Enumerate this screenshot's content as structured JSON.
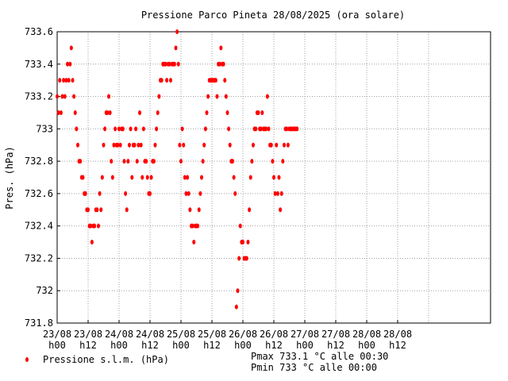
{
  "chart_data": {
    "type": "scatter",
    "title": "Pressione Parco Pineta 28/08/2025 (ora solare)",
    "ylabel": "Pres. (hPa)",
    "xlabel": "",
    "ylim": [
      731.8,
      733.6
    ],
    "xlim": [
      0,
      168
    ],
    "grid": true,
    "legend": "bottom-left",
    "series_color": "#ff0000",
    "y_ticks": [
      "731.8",
      "732",
      "732.2",
      "732.4",
      "732.6",
      "732.8",
      "733",
      "733.2",
      "733.4",
      "733.6"
    ],
    "x_ticks": [
      {
        "x": 0,
        "date": "23/08",
        "hour": "h00"
      },
      {
        "x": 12,
        "date": "23/08",
        "hour": "h12"
      },
      {
        "x": 24,
        "date": "24/08",
        "hour": "h00"
      },
      {
        "x": 36,
        "date": "24/08",
        "hour": "h12"
      },
      {
        "x": 48,
        "date": "25/08",
        "hour": "h00"
      },
      {
        "x": 60,
        "date": "25/08",
        "hour": "h12"
      },
      {
        "x": 72,
        "date": "26/08",
        "hour": "h00"
      },
      {
        "x": 84,
        "date": "26/08",
        "hour": "h12"
      },
      {
        "x": 96,
        "date": "27/08",
        "hour": "h00"
      },
      {
        "x": 108,
        "date": "27/08",
        "hour": "h12"
      },
      {
        "x": 120,
        "date": "28/08",
        "hour": "h00"
      },
      {
        "x": 132,
        "date": "28/08",
        "hour": "h12"
      }
    ],
    "series": [
      {
        "name": "Pressione s.l.m. (hPa)",
        "points": [
          [
            0.0,
            733.2
          ],
          [
            0.5,
            733.1
          ],
          [
            1.0,
            733.3
          ],
          [
            1.5,
            733.1
          ],
          [
            2.0,
            733.2
          ],
          [
            2.5,
            733.3
          ],
          [
            3.0,
            733.2
          ],
          [
            3.5,
            733.3
          ],
          [
            4.0,
            733.4
          ],
          [
            4.5,
            733.3
          ],
          [
            5.0,
            733.4
          ],
          [
            5.5,
            733.5
          ],
          [
            6.0,
            733.3
          ],
          [
            6.5,
            733.2
          ],
          [
            7.0,
            733.1
          ],
          [
            7.5,
            733.0
          ],
          [
            8.0,
            732.9
          ],
          [
            8.5,
            732.8
          ],
          [
            9.0,
            732.8
          ],
          [
            9.5,
            732.7
          ],
          [
            10.0,
            732.7
          ],
          [
            10.5,
            732.6
          ],
          [
            11.0,
            732.6
          ],
          [
            11.5,
            732.5
          ],
          [
            12.0,
            732.5
          ],
          [
            12.5,
            732.4
          ],
          [
            13.0,
            732.4
          ],
          [
            13.5,
            732.3
          ],
          [
            14.0,
            732.4
          ],
          [
            14.5,
            732.4
          ],
          [
            15.0,
            732.5
          ],
          [
            15.5,
            732.5
          ],
          [
            16.0,
            732.4
          ],
          [
            16.5,
            732.6
          ],
          [
            17.0,
            732.5
          ],
          [
            17.5,
            732.7
          ],
          [
            18.0,
            732.9
          ],
          [
            18.5,
            733.0
          ],
          [
            19.0,
            733.1
          ],
          [
            19.5,
            733.1
          ],
          [
            20.0,
            733.2
          ],
          [
            20.5,
            733.1
          ],
          [
            21.0,
            732.8
          ],
          [
            21.5,
            732.7
          ],
          [
            22.0,
            732.9
          ],
          [
            22.5,
            733.0
          ],
          [
            23.0,
            732.9
          ],
          [
            23.5,
            732.9
          ],
          [
            24.0,
            733.0
          ],
          [
            24.5,
            732.9
          ],
          [
            25.0,
            733.0
          ],
          [
            25.5,
            733.0
          ],
          [
            26.0,
            732.8
          ],
          [
            26.5,
            732.6
          ],
          [
            27.0,
            732.5
          ],
          [
            27.5,
            732.8
          ],
          [
            28.0,
            732.9
          ],
          [
            28.5,
            733.0
          ],
          [
            29.0,
            732.7
          ],
          [
            29.5,
            732.9
          ],
          [
            30.0,
            732.9
          ],
          [
            30.5,
            733.0
          ],
          [
            31.0,
            732.8
          ],
          [
            31.5,
            732.9
          ],
          [
            32.0,
            733.1
          ],
          [
            32.5,
            732.9
          ],
          [
            33.0,
            732.7
          ],
          [
            33.5,
            733.0
          ],
          [
            34.0,
            732.8
          ],
          [
            34.5,
            732.8
          ],
          [
            35.0,
            732.7
          ],
          [
            35.5,
            732.6
          ],
          [
            36.0,
            732.6
          ],
          [
            36.5,
            732.7
          ],
          [
            37.0,
            732.8
          ],
          [
            37.5,
            732.8
          ],
          [
            38.0,
            732.9
          ],
          [
            38.5,
            733.0
          ],
          [
            39.0,
            733.1
          ],
          [
            39.5,
            733.2
          ],
          [
            40.0,
            733.3
          ],
          [
            40.5,
            733.3
          ],
          [
            41.0,
            733.4
          ],
          [
            41.5,
            733.4
          ],
          [
            42.0,
            733.4
          ],
          [
            42.5,
            733.3
          ],
          [
            43.0,
            733.4
          ],
          [
            43.5,
            733.4
          ],
          [
            44.0,
            733.3
          ],
          [
            44.5,
            733.4
          ],
          [
            45.0,
            733.4
          ],
          [
            45.5,
            733.4
          ],
          [
            46.0,
            733.5
          ],
          [
            46.5,
            733.6
          ],
          [
            47.0,
            733.4
          ],
          [
            47.5,
            732.9
          ],
          [
            48.0,
            732.8
          ],
          [
            48.5,
            733.0
          ],
          [
            49.0,
            732.9
          ],
          [
            49.5,
            732.7
          ],
          [
            50.0,
            732.6
          ],
          [
            50.5,
            732.7
          ],
          [
            51.0,
            732.6
          ],
          [
            51.5,
            732.5
          ],
          [
            52.0,
            732.4
          ],
          [
            52.5,
            732.4
          ],
          [
            53.0,
            732.3
          ],
          [
            53.5,
            732.4
          ],
          [
            54.0,
            732.4
          ],
          [
            54.5,
            732.4
          ],
          [
            55.0,
            732.5
          ],
          [
            55.5,
            732.6
          ],
          [
            56.0,
            732.7
          ],
          [
            56.5,
            732.8
          ],
          [
            57.0,
            732.9
          ],
          [
            57.5,
            733.0
          ],
          [
            58.0,
            733.1
          ],
          [
            58.5,
            733.2
          ],
          [
            59.0,
            733.3
          ],
          [
            59.5,
            733.3
          ],
          [
            60.0,
            733.3
          ],
          [
            60.5,
            733.3
          ],
          [
            61.0,
            733.3
          ],
          [
            61.5,
            733.3
          ],
          [
            62.0,
            733.2
          ],
          [
            62.5,
            733.4
          ],
          [
            63.0,
            733.4
          ],
          [
            63.5,
            733.5
          ],
          [
            64.0,
            733.4
          ],
          [
            64.5,
            733.4
          ],
          [
            65.0,
            733.3
          ],
          [
            65.5,
            733.2
          ],
          [
            66.0,
            733.1
          ],
          [
            66.5,
            733.0
          ],
          [
            67.0,
            732.9
          ],
          [
            67.5,
            732.8
          ],
          [
            68.0,
            732.8
          ],
          [
            68.5,
            732.7
          ],
          [
            69.0,
            732.6
          ],
          [
            69.5,
            731.9
          ],
          [
            70.0,
            732.0
          ],
          [
            70.5,
            732.2
          ],
          [
            71.0,
            732.4
          ],
          [
            71.5,
            732.3
          ],
          [
            72.0,
            732.3
          ],
          [
            72.5,
            732.2
          ],
          [
            73.0,
            732.2
          ],
          [
            73.5,
            732.2
          ],
          [
            74.0,
            732.3
          ],
          [
            74.5,
            732.5
          ],
          [
            75.0,
            732.7
          ],
          [
            75.5,
            732.8
          ],
          [
            76.0,
            732.9
          ],
          [
            76.5,
            733.0
          ],
          [
            77.0,
            733.0
          ],
          [
            77.5,
            733.1
          ],
          [
            78.0,
            733.1
          ],
          [
            78.5,
            733.0
          ],
          [
            79.0,
            733.0
          ],
          [
            79.5,
            733.1
          ],
          [
            80.0,
            733.0
          ],
          [
            80.5,
            733.0
          ],
          [
            81.0,
            733.0
          ],
          [
            81.5,
            733.2
          ],
          [
            82.0,
            733.0
          ],
          [
            82.5,
            732.9
          ],
          [
            83.0,
            732.9
          ],
          [
            83.5,
            732.8
          ],
          [
            84.0,
            732.7
          ],
          [
            84.5,
            732.6
          ],
          [
            85.0,
            732.9
          ],
          [
            85.5,
            732.6
          ],
          [
            86.0,
            732.7
          ],
          [
            86.5,
            732.5
          ],
          [
            87.0,
            732.6
          ],
          [
            87.5,
            732.8
          ],
          [
            88.0,
            732.9
          ],
          [
            88.5,
            733.0
          ],
          [
            89.0,
            733.0
          ],
          [
            89.5,
            732.9
          ],
          [
            90.0,
            733.0
          ],
          [
            90.5,
            733.0
          ],
          [
            91.0,
            733.0
          ],
          [
            91.5,
            733.0
          ],
          [
            92.0,
            733.0
          ],
          [
            92.5,
            733.0
          ],
          [
            93.0,
            733.0
          ]
        ]
      }
    ],
    "legend_label": "Pressione s.l.m. (hPa)",
    "annotations": [
      "Pmax 733.1 °C alle 00:30",
      "Pmin 733 °C alle 00:00"
    ]
  }
}
